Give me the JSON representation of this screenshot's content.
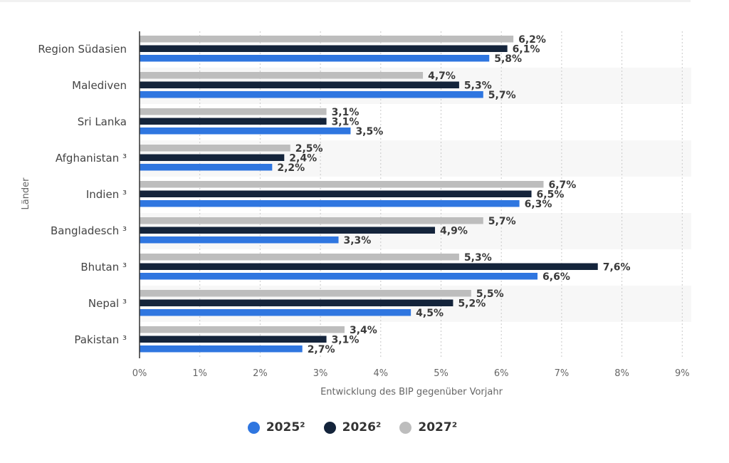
{
  "chart_data": {
    "type": "bar",
    "orientation": "horizontal",
    "categories": [
      "Region Südasien",
      "Malediven",
      "Sri Lanka",
      "Afghanistan ³",
      "Indien ³",
      "Bangladesch ³",
      "Bhutan ³",
      "Nepal ³",
      "Pakistan ³"
    ],
    "series": [
      {
        "name": "2027²",
        "color": "#bdbdbd",
        "values": [
          6.2,
          4.7,
          3.1,
          2.5,
          6.7,
          5.7,
          5.3,
          5.5,
          3.4
        ],
        "labels": [
          "6,2%",
          "4,7%",
          "3,1%",
          "2,5%",
          "6,7%",
          "5,7%",
          "5,3%",
          "5,5%",
          "3,4%"
        ]
      },
      {
        "name": "2026²",
        "color": "#14243b",
        "values": [
          6.1,
          5.3,
          3.1,
          2.4,
          6.5,
          4.9,
          7.6,
          5.2,
          3.1
        ],
        "labels": [
          "6,1%",
          "5,3%",
          "3,1%",
          "2,4%",
          "6,5%",
          "4,9%",
          "7,6%",
          "5,2%",
          "3,1%"
        ]
      },
      {
        "name": "2025²",
        "color": "#2f76e0",
        "values": [
          5.8,
          5.7,
          3.5,
          2.2,
          6.3,
          3.3,
          6.6,
          4.5,
          2.7
        ],
        "labels": [
          "5,8%",
          "5,7%",
          "3,5%",
          "2,2%",
          "6,3%",
          "3,3%",
          "6,6%",
          "4,5%",
          "2,7%"
        ]
      }
    ],
    "xlim": [
      0,
      9
    ],
    "xticks": [
      "0%",
      "1%",
      "2%",
      "3%",
      "4%",
      "5%",
      "6%",
      "7%",
      "8%",
      "9%"
    ],
    "xlabel": "Entwicklung des BIP gegenüber Vorjahr",
    "ylabel": "Länder",
    "grid": true,
    "legend_position": "bottom"
  },
  "legend": {
    "items": [
      {
        "label": "2025²",
        "color": "#2f76e0"
      },
      {
        "label": "2026²",
        "color": "#14243b"
      },
      {
        "label": "2027²",
        "color": "#bdbdbd"
      }
    ]
  }
}
